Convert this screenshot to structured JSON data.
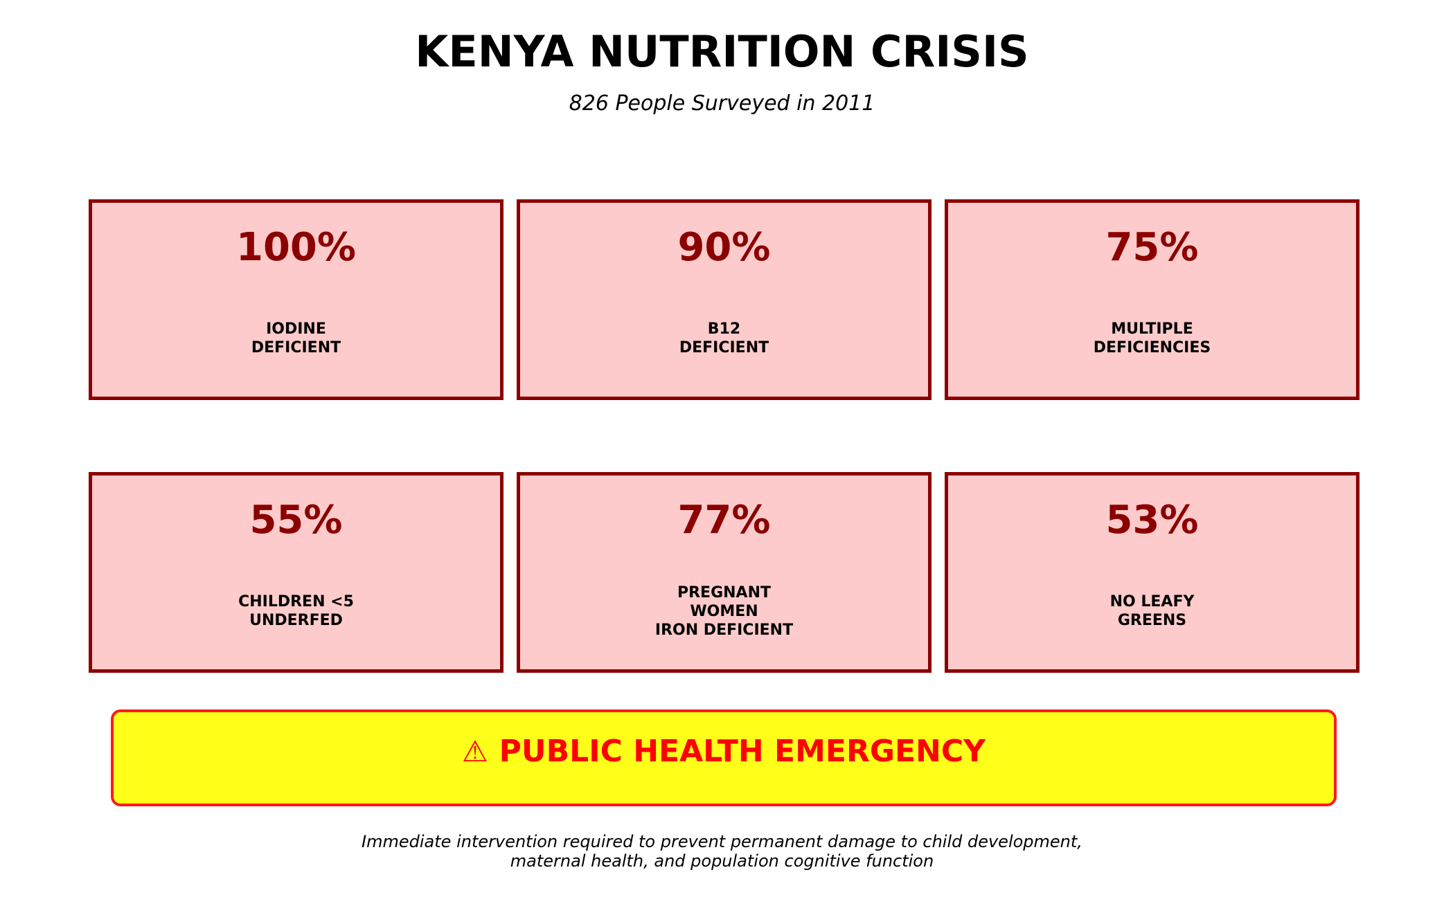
{
  "title": "KENYA NUTRITION CRISIS",
  "subtitle": "826 People Surveyed in 2011",
  "colors": {
    "card_border": "#8b0000",
    "card_fill": "#fdcbcb",
    "value_text": "#8b0000",
    "alert_fill": "#ffff1a",
    "alert_border": "#ff1a1a",
    "alert_text": "#ff0000"
  },
  "chart_data": {
    "type": "table",
    "title": "KENYA NUTRITION CRISIS",
    "subtitle": "826 People Surveyed in 2011",
    "cards": [
      {
        "value": "100%",
        "number": 100,
        "label": "IODINE\nDEFICIENT"
      },
      {
        "value": "90%",
        "number": 90,
        "label": "B12\nDEFICIENT"
      },
      {
        "value": "75%",
        "number": 75,
        "label": "MULTIPLE\nDEFICIENCIES"
      },
      {
        "value": "55%",
        "number": 55,
        "label": "CHILDREN <5\nUNDERFED"
      },
      {
        "value": "77%",
        "number": 77,
        "label": "PREGNANT\nWOMEN\nIRON DEFICIENT"
      },
      {
        "value": "53%",
        "number": 53,
        "label": "NO LEAFY\nGREENS"
      }
    ]
  },
  "alert": {
    "icon": "warning-icon",
    "icon_glyph": "⚠",
    "text": "PUBLIC HEALTH EMERGENCY"
  },
  "footnote": "Immediate intervention required to prevent permanent damage to child development,\nmaternal health, and population cognitive function"
}
